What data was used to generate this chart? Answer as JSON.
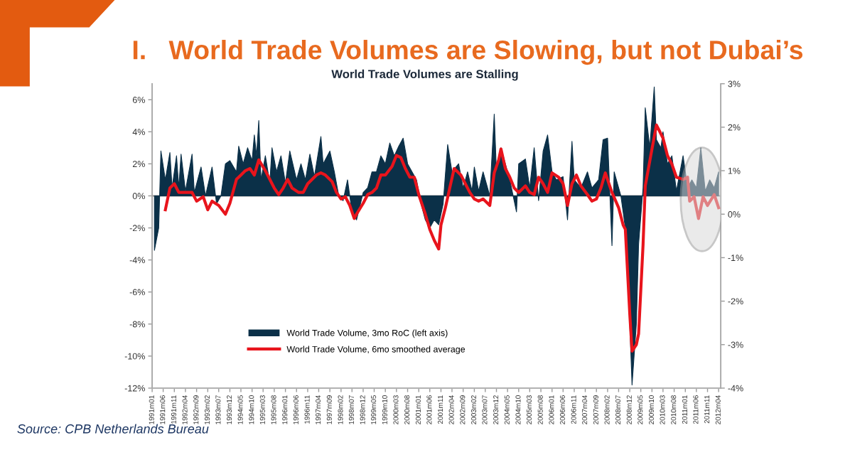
{
  "chart_data": {
    "type": "area",
    "title": "I.   World Trade Volumes are Slowing, but not Dubai’s",
    "subtitle": "World Trade Volumes are Stalling",
    "annotations": [
      "Source: CPB Netherlands Bureau"
    ],
    "xlim": [
      "1991-01",
      "2012-05"
    ],
    "xticks": [
      {
        "value": "1991-01",
        "label": "1991m01"
      },
      {
        "value": "1991-06",
        "label": "1991m06"
      },
      {
        "value": "1991-11",
        "label": "1991m11"
      },
      {
        "value": "1992-04",
        "label": "1992m04"
      },
      {
        "value": "1992-09",
        "label": "1992m09"
      },
      {
        "value": "1993-02",
        "label": "1993m02"
      },
      {
        "value": "1993-07",
        "label": "1993m07"
      },
      {
        "value": "1993-12",
        "label": "1993m12"
      },
      {
        "value": "1994-05",
        "label": "1994m05"
      },
      {
        "value": "1994-10",
        "label": "1994m10"
      },
      {
        "value": "1995-03",
        "label": "1995m03"
      },
      {
        "value": "1995-08",
        "label": "1995m08"
      },
      {
        "value": "1996-01",
        "label": "1996m01"
      },
      {
        "value": "1996-06",
        "label": "1996m06"
      },
      {
        "value": "1996-11",
        "label": "1996m11"
      },
      {
        "value": "1997-04",
        "label": "1997m04"
      },
      {
        "value": "1997-09",
        "label": "1997m09"
      },
      {
        "value": "1998-02",
        "label": "1998m02"
      },
      {
        "value": "1998-07",
        "label": "1998m07"
      },
      {
        "value": "1998-12",
        "label": "1998m12"
      },
      {
        "value": "1999-05",
        "label": "1999m05"
      },
      {
        "value": "1999-10",
        "label": "1999m10"
      },
      {
        "value": "2000-03",
        "label": "2000m03"
      },
      {
        "value": "2000-08",
        "label": "2000m08"
      },
      {
        "value": "2001-01",
        "label": "2001m01"
      },
      {
        "value": "2001-06",
        "label": "2001m06"
      },
      {
        "value": "2001-11",
        "label": "2001m11"
      },
      {
        "value": "2002-04",
        "label": "2002m04"
      },
      {
        "value": "2002-09",
        "label": "2002m09"
      },
      {
        "value": "2003-02",
        "label": "2003m02"
      },
      {
        "value": "2003-07",
        "label": "2003m07"
      },
      {
        "value": "2003-12",
        "label": "2003m12"
      },
      {
        "value": "2004-05",
        "label": "2004m05"
      },
      {
        "value": "2004-10",
        "label": "2004m10"
      },
      {
        "value": "2005-03",
        "label": "2005m03"
      },
      {
        "value": "2005-08",
        "label": "2005m08"
      },
      {
        "value": "2006-01",
        "label": "2006m01"
      },
      {
        "value": "2006-06",
        "label": "2006m06"
      },
      {
        "value": "2006-11",
        "label": "2006m11"
      },
      {
        "value": "2007-04",
        "label": "2007m04"
      },
      {
        "value": "2007-09",
        "label": "2007m09"
      },
      {
        "value": "2008-02",
        "label": "2008m02"
      },
      {
        "value": "2008-07",
        "label": "2008m07"
      },
      {
        "value": "2008-12",
        "label": "2008m12"
      },
      {
        "value": "2009-05",
        "label": "2009m05"
      },
      {
        "value": "2009-10",
        "label": "2009m10"
      },
      {
        "value": "2010-03",
        "label": "2010m03"
      },
      {
        "value": "2010-08",
        "label": "2010m08"
      },
      {
        "value": "2011-01",
        "label": "2011m01"
      },
      {
        "value": "2011-06",
        "label": "2011m06"
      },
      {
        "value": "2011-11",
        "label": "2011m11"
      },
      {
        "value": "2012-04",
        "label": "2012m04"
      }
    ],
    "ylim": [
      -12,
      7
    ],
    "yticks": [
      {
        "value": -12,
        "label": "-12%"
      },
      {
        "value": -10,
        "label": "-10%"
      },
      {
        "value": -8,
        "label": "-8%"
      },
      {
        "value": -6,
        "label": "-6%"
      },
      {
        "value": -4,
        "label": "-4%"
      },
      {
        "value": -2,
        "label": "-2%"
      },
      {
        "value": 0,
        "label": "0%"
      },
      {
        "value": 2,
        "label": "2%"
      },
      {
        "value": 4,
        "label": "4%"
      },
      {
        "value": 6,
        "label": "6%"
      }
    ],
    "y2lim": [
      -4,
      3
    ],
    "y2ticks": [
      {
        "value": -4,
        "label": "-4%"
      },
      {
        "value": -3,
        "label": "-3%"
      },
      {
        "value": -2,
        "label": "-2%"
      },
      {
        "value": -1,
        "label": "-1%"
      },
      {
        "value": 0,
        "label": "0%"
      },
      {
        "value": 1,
        "label": "1%"
      },
      {
        "value": 2,
        "label": "2%"
      },
      {
        "value": 3,
        "label": "3%"
      }
    ],
    "ref_lines": [
      {
        "axis": "y",
        "value": 0,
        "color": "#8c8c8c"
      }
    ],
    "grid": false,
    "legend": "bottom",
    "series": [
      {
        "name": "World Trade Volume, 3mo RoC (left axis)",
        "color": "#0b3048",
        "x": [
          "1991-02",
          "1991-04",
          "1991-05",
          "1991-07",
          "1991-09",
          "1991-10",
          "1991-12",
          "1992-01",
          "1992-02",
          "1992-04",
          "1992-07",
          "1992-08",
          "1992-11",
          "1993-01",
          "1993-04",
          "1993-06",
          "1993-08",
          "1993-10",
          "1993-12",
          "1994-03",
          "1994-04",
          "1994-06",
          "1994-08",
          "1994-10",
          "1994-11",
          "1994-12",
          "1995-01",
          "1995-02",
          "1995-04",
          "1995-06",
          "1995-07",
          "1995-09",
          "1995-11",
          "1996-01",
          "1996-03",
          "1996-06",
          "1996-08",
          "1996-10",
          "1996-12",
          "1997-02",
          "1997-05",
          "1997-06",
          "1997-09",
          "1997-11",
          "1998-01",
          "1998-03",
          "1998-05",
          "1998-07",
          "1998-09",
          "1998-12",
          "1999-02",
          "1999-04",
          "1999-06",
          "1999-08",
          "1999-10",
          "1999-12",
          "2000-02",
          "2000-04",
          "2000-06",
          "2000-08",
          "2000-10",
          "2000-12",
          "2001-02",
          "2001-04",
          "2001-06",
          "2001-08",
          "2001-10",
          "2001-12",
          "2002-02",
          "2002-04",
          "2002-07",
          "2002-09",
          "2002-11",
          "2003-01",
          "2003-02",
          "2003-04",
          "2003-06",
          "2003-09",
          "2003-11",
          "2003-12",
          "2004-02",
          "2004-04",
          "2004-06",
          "2004-09",
          "2004-10",
          "2005-01",
          "2005-03",
          "2005-05",
          "2005-07",
          "2005-09",
          "2005-11",
          "2006-01",
          "2006-03",
          "2006-06",
          "2006-08",
          "2006-10",
          "2006-11",
          "2007-02",
          "2007-05",
          "2007-07",
          "2007-10",
          "2007-12",
          "2008-02",
          "2008-04",
          "2008-05",
          "2008-08",
          "2008-10",
          "2008-12",
          "2009-01",
          "2009-03",
          "2009-04",
          "2009-06",
          "2009-07",
          "2009-09",
          "2009-11",
          "2009-12",
          "2010-02",
          "2010-03",
          "2010-05",
          "2010-07",
          "2010-09",
          "2010-12",
          "2011-02",
          "2011-04",
          "2011-06",
          "2011-08",
          "2011-10",
          "2011-12",
          "2012-02",
          "2012-04"
        ],
        "values": [
          -3.4,
          -2.0,
          2.8,
          1.0,
          2.7,
          0.5,
          2.5,
          0.5,
          2.6,
          0.3,
          2.6,
          0.2,
          1.8,
          0,
          1.8,
          -0.5,
          0,
          2.0,
          2.2,
          1.5,
          3.1,
          2.0,
          3.0,
          2.2,
          3.8,
          2.5,
          4.7,
          1.0,
          2.5,
          0.8,
          3.0,
          1.5,
          2.5,
          0.8,
          2.8,
          1.0,
          2.0,
          1.0,
          2.6,
          1.2,
          3.7,
          2.0,
          2.8,
          1.5,
          0,
          -0.3,
          1.0,
          -1.0,
          -1.5,
          0.2,
          0.5,
          1.5,
          1.5,
          2.5,
          2.0,
          3.3,
          2.5,
          3.1,
          3.6,
          2.0,
          1.5,
          1.0,
          -0.5,
          -1.5,
          -2.0,
          -1.5,
          -1.8,
          -0.5,
          3.2,
          1.5,
          2.0,
          0.5,
          1.5,
          0.3,
          1.8,
          0.3,
          1.5,
          0,
          5.1,
          1.5,
          3.0,
          2.0,
          1.0,
          -1.0,
          2.0,
          2.3,
          0.5,
          3.0,
          -0.3,
          2.8,
          3.8,
          1.5,
          1.0,
          1.2,
          -1.5,
          3.4,
          1.0,
          0.5,
          1.5,
          0.5,
          1.0,
          3.5,
          3.6,
          -3.1,
          1.5,
          0,
          -2.0,
          -8,
          -11.8,
          -8,
          -3,
          0.5,
          5.5,
          3.0,
          6.8,
          3.5,
          3.0,
          4.0,
          2.0,
          2.5,
          0.3,
          2.5,
          0.5,
          1.0,
          0.5,
          3.0,
          0.3,
          1.0,
          0.5,
          1.5
        ]
      },
      {
        "name": "World Trade Volume, 6mo smoothed average",
        "type": "line",
        "axis": "y2",
        "color": "#e8141c",
        "x": [
          "1991-07",
          "1991-09",
          "1991-11",
          "1992-01",
          "1992-04",
          "1992-07",
          "1992-09",
          "1992-12",
          "1993-02",
          "1993-04",
          "1993-07",
          "1993-10",
          "1993-12",
          "1994-03",
          "1994-05",
          "1994-07",
          "1994-09",
          "1994-11",
          "1995-01",
          "1995-04",
          "1995-06",
          "1995-08",
          "1995-10",
          "1995-12",
          "1996-02",
          "1996-04",
          "1996-07",
          "1996-09",
          "1996-11",
          "1997-01",
          "1997-03",
          "1997-05",
          "1997-07",
          "1997-10",
          "1997-12",
          "1998-02",
          "1998-04",
          "1998-06",
          "1998-08",
          "1998-09",
          "1998-12",
          "1999-02",
          "1999-04",
          "1999-06",
          "1999-08",
          "1999-10",
          "2000-01",
          "2000-03",
          "2000-05",
          "2000-07",
          "2000-09",
          "2000-11",
          "2001-01",
          "2001-04",
          "2001-06",
          "2001-08",
          "2001-10",
          "2001-11",
          "2002-01",
          "2002-03",
          "2002-05",
          "2002-08",
          "2002-10",
          "2002-12",
          "2003-02",
          "2003-04",
          "2003-06",
          "2003-09",
          "2003-11",
          "2004-01",
          "2004-02",
          "2004-04",
          "2004-06",
          "2004-08",
          "2004-10",
          "2005-01",
          "2005-03",
          "2005-05",
          "2005-07",
          "2005-09",
          "2005-11",
          "2006-01",
          "2006-04",
          "2006-06",
          "2006-08",
          "2006-10",
          "2006-12",
          "2007-02",
          "2007-05",
          "2007-07",
          "2007-09",
          "2007-11",
          "2008-01",
          "2008-03",
          "2008-04",
          "2008-07",
          "2008-09",
          "2008-10",
          "2008-12",
          "2009-01",
          "2009-03",
          "2009-04",
          "2009-06",
          "2009-07",
          "2009-10",
          "2009-12",
          "2010-01",
          "2010-03",
          "2010-05",
          "2010-07",
          "2010-09",
          "2010-12",
          "2011-02",
          "2011-03",
          "2011-05",
          "2011-07",
          "2011-09",
          "2011-11",
          "2012-02",
          "2012-04"
        ],
        "values": [
          0.1,
          0.6,
          0.7,
          0.5,
          0.5,
          0.5,
          0.3,
          0.4,
          0.1,
          0.3,
          0.2,
          0.0,
          0.25,
          0.8,
          0.9,
          1.0,
          1.05,
          0.9,
          1.25,
          1.0,
          0.8,
          0.6,
          0.45,
          0.6,
          0.8,
          0.6,
          0.5,
          0.5,
          0.7,
          0.8,
          0.9,
          0.95,
          0.9,
          0.75,
          0.5,
          0.35,
          0.4,
          0.2,
          -0.1,
          0.0,
          0.25,
          0.45,
          0.5,
          0.6,
          0.9,
          0.9,
          1.1,
          1.35,
          1.3,
          1.05,
          0.85,
          0.85,
          0.45,
          0.0,
          -0.35,
          -0.6,
          -0.8,
          -0.25,
          0.15,
          0.6,
          1.05,
          0.9,
          0.7,
          0.5,
          0.35,
          0.3,
          0.35,
          0.2,
          0.95,
          1.25,
          1.5,
          1.05,
          0.85,
          0.6,
          0.5,
          0.65,
          0.5,
          0.45,
          0.85,
          0.7,
          0.5,
          0.95,
          0.85,
          0.7,
          0.2,
          0.7,
          0.9,
          0.65,
          0.45,
          0.3,
          0.35,
          0.6,
          0.95,
          0.65,
          0.5,
          0.15,
          -0.25,
          -0.35,
          -2.3,
          -3.15,
          -3.0,
          -2.75,
          -0.7,
          0.65,
          1.5,
          2.05,
          1.95,
          1.75,
          1.35,
          1.15,
          0.85,
          0.8,
          0.85,
          0.3,
          0.4,
          -0.1,
          0.4,
          0.2,
          0.45,
          0.15
        ]
      }
    ]
  }
}
